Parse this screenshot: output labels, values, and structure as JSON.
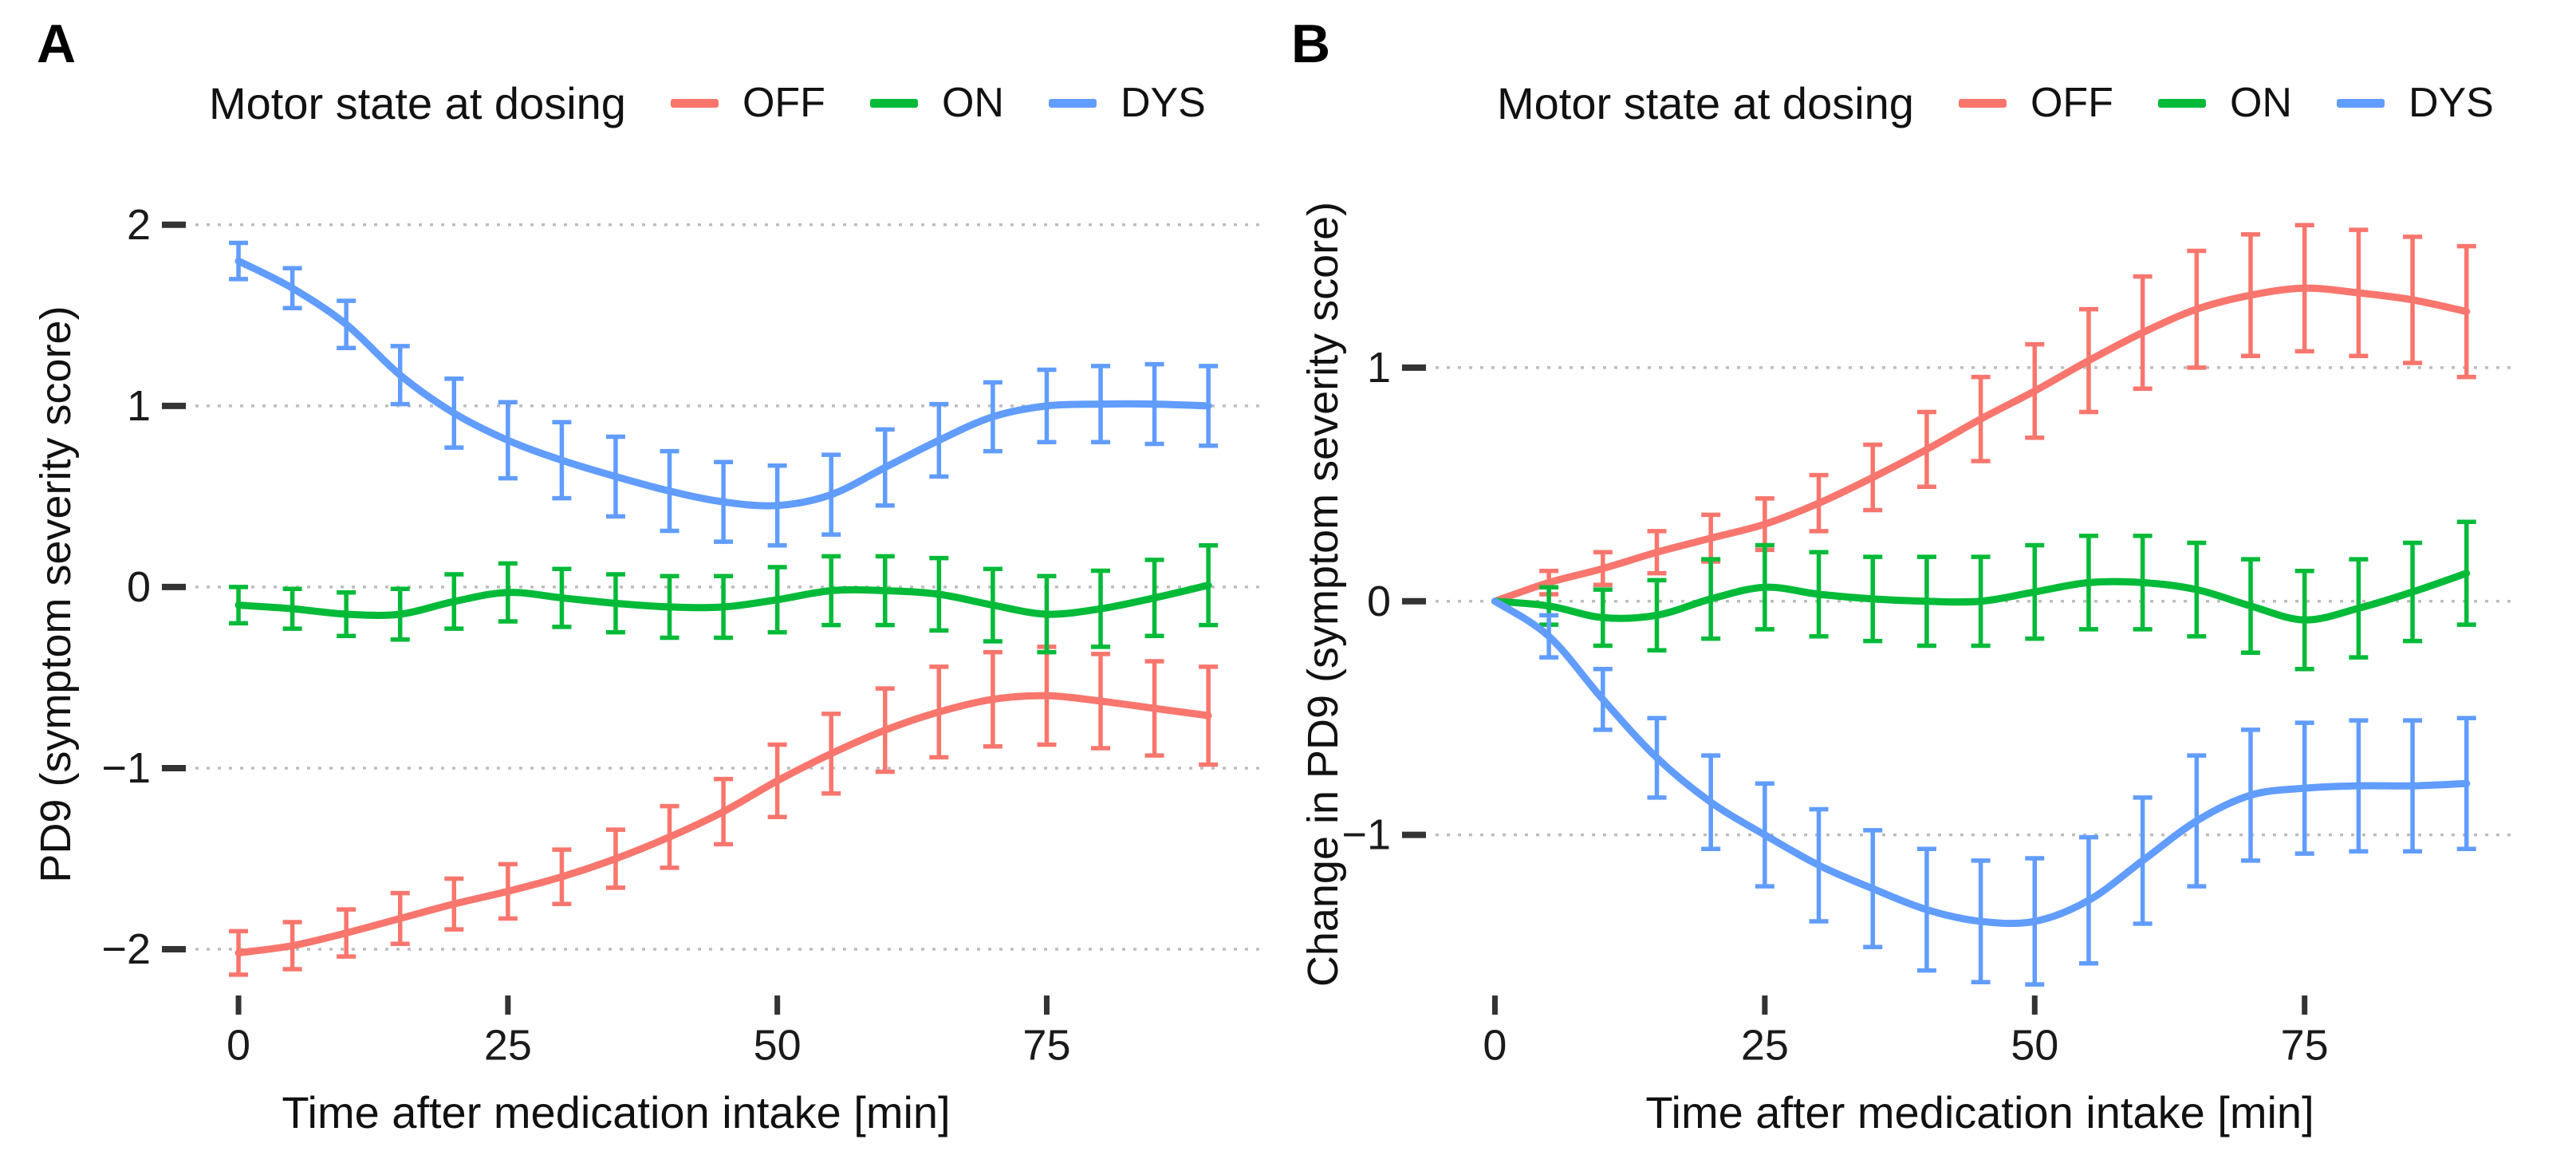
{
  "page": {
    "background": "#ffffff"
  },
  "panels": [
    {
      "label": "A"
    },
    {
      "label": "B"
    }
  ],
  "legend": {
    "title": "Motor state at dosing",
    "items": [
      {
        "label": "OFF",
        "color": "#F8766D"
      },
      {
        "label": "ON",
        "color": "#00BA38"
      },
      {
        "label": "DYS",
        "color": "#619CFF"
      }
    ]
  },
  "chart_data": [
    {
      "id": "A",
      "type": "line",
      "panel_label": "A",
      "legend_title": "Motor state at dosing",
      "legend_position": "top",
      "xlabel": "Time after medication intake [min]",
      "ylabel": "PD9 (symptom severity score)",
      "x": [
        0,
        5,
        10,
        15,
        20,
        25,
        30,
        35,
        40,
        45,
        50,
        55,
        60,
        65,
        70,
        75,
        80,
        85,
        90
      ],
      "xticks": [
        0,
        25,
        50,
        75
      ],
      "yticks": [
        2,
        1,
        0,
        -1,
        -2
      ],
      "xlim": [
        -4.0,
        94.8
      ],
      "ylim": [
        -2.22,
        2.14
      ],
      "grid": "horizontal-dotted",
      "gridline_color": "#bdbdbd",
      "tick_color": "#333333",
      "series": [
        {
          "name": "OFF",
          "color": "#F8766D",
          "values": [
            -2.02,
            -1.98,
            -1.91,
            -1.83,
            -1.75,
            -1.68,
            -1.6,
            -1.5,
            -1.38,
            -1.24,
            -1.07,
            -0.92,
            -0.79,
            -0.69,
            -0.62,
            -0.6,
            -0.63,
            -0.67,
            -0.71
          ],
          "errors": [
            0.12,
            0.13,
            0.13,
            0.14,
            0.14,
            0.15,
            0.15,
            0.16,
            0.17,
            0.18,
            0.2,
            0.22,
            0.23,
            0.25,
            0.26,
            0.27,
            0.26,
            0.26,
            0.27
          ]
        },
        {
          "name": "ON",
          "color": "#00BA38",
          "values": [
            -0.1,
            -0.12,
            -0.15,
            -0.15,
            -0.08,
            -0.03,
            -0.06,
            -0.09,
            -0.11,
            -0.11,
            -0.07,
            -0.02,
            -0.02,
            -0.04,
            -0.1,
            -0.15,
            -0.12,
            -0.06,
            0.01
          ],
          "errors": [
            0.1,
            0.11,
            0.12,
            0.14,
            0.15,
            0.16,
            0.16,
            0.16,
            0.17,
            0.17,
            0.18,
            0.19,
            0.19,
            0.2,
            0.2,
            0.21,
            0.21,
            0.21,
            0.22
          ]
        },
        {
          "name": "DYS",
          "color": "#619CFF",
          "values": [
            1.8,
            1.65,
            1.45,
            1.17,
            0.96,
            0.81,
            0.7,
            0.61,
            0.53,
            0.47,
            0.45,
            0.51,
            0.66,
            0.81,
            0.94,
            1.0,
            1.01,
            1.01,
            1.0
          ],
          "errors": [
            0.1,
            0.11,
            0.13,
            0.16,
            0.19,
            0.21,
            0.21,
            0.22,
            0.22,
            0.22,
            0.22,
            0.22,
            0.21,
            0.2,
            0.19,
            0.2,
            0.21,
            0.22,
            0.22
          ]
        }
      ]
    },
    {
      "id": "B",
      "type": "line",
      "panel_label": "B",
      "legend_title": "Motor state at dosing",
      "legend_position": "top",
      "xlabel": "Time after medication intake [min]",
      "ylabel": "Change in PD9 (symptom severity score)",
      "x": [
        0,
        5,
        10,
        15,
        20,
        25,
        30,
        35,
        40,
        45,
        50,
        55,
        60,
        65,
        70,
        75,
        80,
        85,
        90
      ],
      "xticks": [
        0,
        25,
        50,
        75
      ],
      "yticks": [
        1,
        0,
        -1
      ],
      "xlim": [
        -5.5,
        94.6
      ],
      "ylim": [
        -1.66,
        1.72
      ],
      "grid": "horizontal-dotted",
      "gridline_color": "#bdbdbd",
      "tick_color": "#333333",
      "series": [
        {
          "name": "OFF",
          "color": "#F8766D",
          "values": [
            0,
            0.08,
            0.14,
            0.21,
            0.27,
            0.33,
            0.42,
            0.53,
            0.65,
            0.78,
            0.9,
            1.03,
            1.15,
            1.25,
            1.31,
            1.34,
            1.32,
            1.29,
            1.24
          ],
          "errors": [
            0,
            0.05,
            0.07,
            0.09,
            0.1,
            0.11,
            0.12,
            0.14,
            0.16,
            0.18,
            0.2,
            0.22,
            0.24,
            0.25,
            0.26,
            0.27,
            0.27,
            0.27,
            0.28
          ]
        },
        {
          "name": "ON",
          "color": "#00BA38",
          "values": [
            0,
            -0.02,
            -0.07,
            -0.06,
            0.01,
            0.06,
            0.03,
            0.01,
            0.0,
            0.0,
            0.04,
            0.08,
            0.08,
            0.05,
            -0.02,
            -0.08,
            -0.03,
            0.04,
            0.12
          ],
          "errors": [
            0,
            0.08,
            0.12,
            0.15,
            0.17,
            0.18,
            0.18,
            0.18,
            0.19,
            0.19,
            0.2,
            0.2,
            0.2,
            0.2,
            0.2,
            0.21,
            0.21,
            0.21,
            0.22
          ]
        },
        {
          "name": "DYS",
          "color": "#619CFF",
          "values": [
            0,
            -0.15,
            -0.42,
            -0.67,
            -0.86,
            -1.0,
            -1.13,
            -1.23,
            -1.32,
            -1.37,
            -1.37,
            -1.28,
            -1.11,
            -0.94,
            -0.83,
            -0.8,
            -0.79,
            -0.79,
            -0.78
          ],
          "errors": [
            0,
            0.09,
            0.13,
            0.17,
            0.2,
            0.22,
            0.24,
            0.25,
            0.26,
            0.26,
            0.27,
            0.27,
            0.27,
            0.28,
            0.28,
            0.28,
            0.28,
            0.28,
            0.28
          ]
        }
      ]
    }
  ]
}
